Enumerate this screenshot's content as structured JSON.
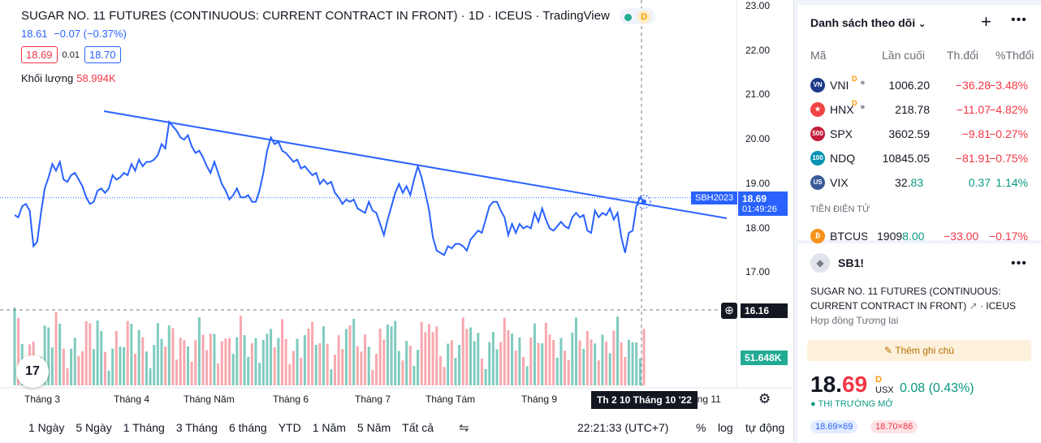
{
  "chart": {
    "title": "SUGAR NO. 11 FUTURES (CONTINUOUS: CURRENT CONTRACT IN FRONT) · 1D · ICEUS · TradingView",
    "delayed_badge": "D",
    "last_price": "18.61",
    "change": "−0.07 (−0.37%)",
    "bid": "18.69",
    "spread": "0.01",
    "ask": "18.70",
    "volume_label": "Khối lượng",
    "volume_value": "58.994K",
    "symbol_tag": "SBH2023",
    "price_tag": "18.69",
    "countdown": "01:49:26",
    "crosshair_price": "16.16",
    "volume_tag": "51.648K",
    "crosshair_date": "Th 2 10 Tháng 10 '22",
    "y_ticks": [
      "23.00",
      "22.00",
      "21.00",
      "20.00",
      "19.00",
      "18.00",
      "17.00"
    ],
    "x_ticks": [
      "Tháng 3",
      "Tháng 4",
      "Tháng Năm",
      "Tháng 6",
      "Tháng 7",
      "Tháng Tám",
      "Tháng 9",
      "áng 11"
    ],
    "colors": {
      "line": "#2962ff",
      "vol_up": "#7fcbbe",
      "vol_down": "#f7a8ae"
    }
  },
  "chart_data": {
    "type": "line",
    "title": "SUGAR NO. 11 FUTURES (CONTINUOUS: CURRENT CONTRACT IN FRONT)",
    "ylim": [
      16.5,
      23.0
    ],
    "values": [
      18.3,
      18.25,
      18.5,
      18.55,
      18.4,
      17.6,
      17.7,
      18.35,
      18.9,
      19.15,
      19.45,
      19.3,
      19.5,
      19.1,
      19.05,
      19.2,
      19.25,
      19.1,
      18.95,
      18.7,
      18.55,
      18.6,
      18.85,
      18.9,
      18.8,
      18.9,
      19.2,
      19.1,
      19.15,
      19.25,
      19.2,
      19.45,
      19.3,
      19.55,
      19.4,
      19.5,
      19.5,
      19.55,
      19.65,
      19.9,
      19.8,
      20.4,
      20.3,
      20.2,
      20.05,
      20.0,
      20.1,
      19.85,
      19.7,
      19.75,
      19.6,
      19.4,
      19.25,
      19.5,
      19.25,
      19.0,
      18.85,
      18.65,
      18.75,
      18.9,
      18.7,
      18.7,
      18.75,
      18.6,
      18.6,
      18.85,
      19.25,
      19.75,
      20.05,
      19.9,
      19.95,
      19.75,
      19.7,
      19.6,
      19.5,
      19.55,
      19.35,
      19.4,
      19.3,
      19.2,
      19.25,
      19.0,
      19.1,
      19.0,
      19.05,
      18.8,
      18.7,
      18.55,
      18.65,
      18.6,
      18.65,
      18.45,
      18.4,
      18.35,
      18.6,
      18.4,
      18.35,
      18.1,
      17.85,
      18.2,
      18.5,
      18.8,
      19.0,
      18.8,
      18.95,
      18.75,
      19.1,
      19.4,
      19.15,
      18.8,
      18.4,
      17.8,
      17.5,
      17.45,
      17.4,
      17.6,
      17.55,
      17.65,
      17.65,
      17.6,
      17.5,
      17.75,
      17.85,
      17.95,
      17.9,
      18.2,
      18.5,
      18.6,
      18.6,
      18.4,
      18.25,
      17.85,
      18.1,
      17.9,
      18.1,
      18.0,
      18.05,
      18.0,
      18.35,
      18.15,
      18.45,
      18.2,
      18.0,
      17.95,
      18.05,
      18.15,
      18.05,
      18.0,
      18.25,
      18.35,
      18.25,
      18.3,
      17.95,
      17.9,
      18.4,
      18.25,
      18.35,
      18.3,
      18.45,
      18.2,
      18.35,
      17.8,
      17.45,
      17.9,
      17.95,
      18.5,
      18.7,
      18.6
    ],
    "volume_max_label": "51.648K"
  },
  "timeframes": [
    "1 Ngày",
    "5 Ngày",
    "1 Tháng",
    "3 Tháng",
    "6 tháng",
    "YTD",
    "1 Năm",
    "5 Năm",
    "Tất cả"
  ],
  "bottom": {
    "clock": "22:21:33 (UTC+7)",
    "percent": "%",
    "log": "log",
    "auto": "tự động"
  },
  "watchlist": {
    "title": "Danh sách theo dõi",
    "columns": [
      "Mã",
      "Lần cuối",
      "Th.đổi",
      "%Thđổi"
    ],
    "rows": [
      {
        "sym": "VNI",
        "badge": "D",
        "last": "1006.20",
        "chg": "−36.28",
        "pct": "−3.48%",
        "trend": "neg",
        "icon": "VN",
        "icon_color": "#1e3a8a"
      },
      {
        "sym": "HNX",
        "badge": "D",
        "last": "218.78",
        "chg": "−11.07",
        "pct": "−4.82%",
        "trend": "neg",
        "icon": "★",
        "icon_color": "#ef4444"
      },
      {
        "sym": "SPX",
        "badge": "",
        "last": "3602.59",
        "chg": "−9.81",
        "pct": "−0.27%",
        "trend": "neg",
        "icon": "500",
        "icon_color": "#c41e3a"
      },
      {
        "sym": "NDQ",
        "badge": "",
        "last": "10845.05",
        "chg": "−81.91",
        "pct": "−0.75%",
        "trend": "neg",
        "icon": "100",
        "icon_color": "#0891b2"
      },
      {
        "sym": "VIX",
        "badge": "",
        "last_main": "32.",
        "last_tail": "83",
        "chg": "0.37",
        "pct": "1.14%",
        "trend": "pos",
        "icon": "US",
        "icon_color": "#3b5998"
      }
    ],
    "section": "TIỀN ĐIỆN TỬ",
    "crypto": {
      "sym": "BTCUS",
      "last_main": "1909",
      "last_tail": "8.00",
      "chg": "−33.00",
      "pct": "−0.17%",
      "icon": "₿",
      "icon_color": "#f7931a"
    }
  },
  "detail": {
    "symbol": "SB1!",
    "description": "SUGAR NO. 11 FUTURES (CONTINUOUS: CURRENT CONTRACT IN FRONT)",
    "exchange": "ICEUS",
    "type": "Hợp đồng Tương lai",
    "note_button": "Thêm ghi chú",
    "price_main": "18.",
    "price_tail": "69",
    "price_badge": "D",
    "currency": "USX",
    "change": "0.08 (0.43%)",
    "market_status": "THỊ TRƯỜNG MỞ",
    "bid_pill": "18.69×69",
    "ask_pill": "18.70×86"
  }
}
